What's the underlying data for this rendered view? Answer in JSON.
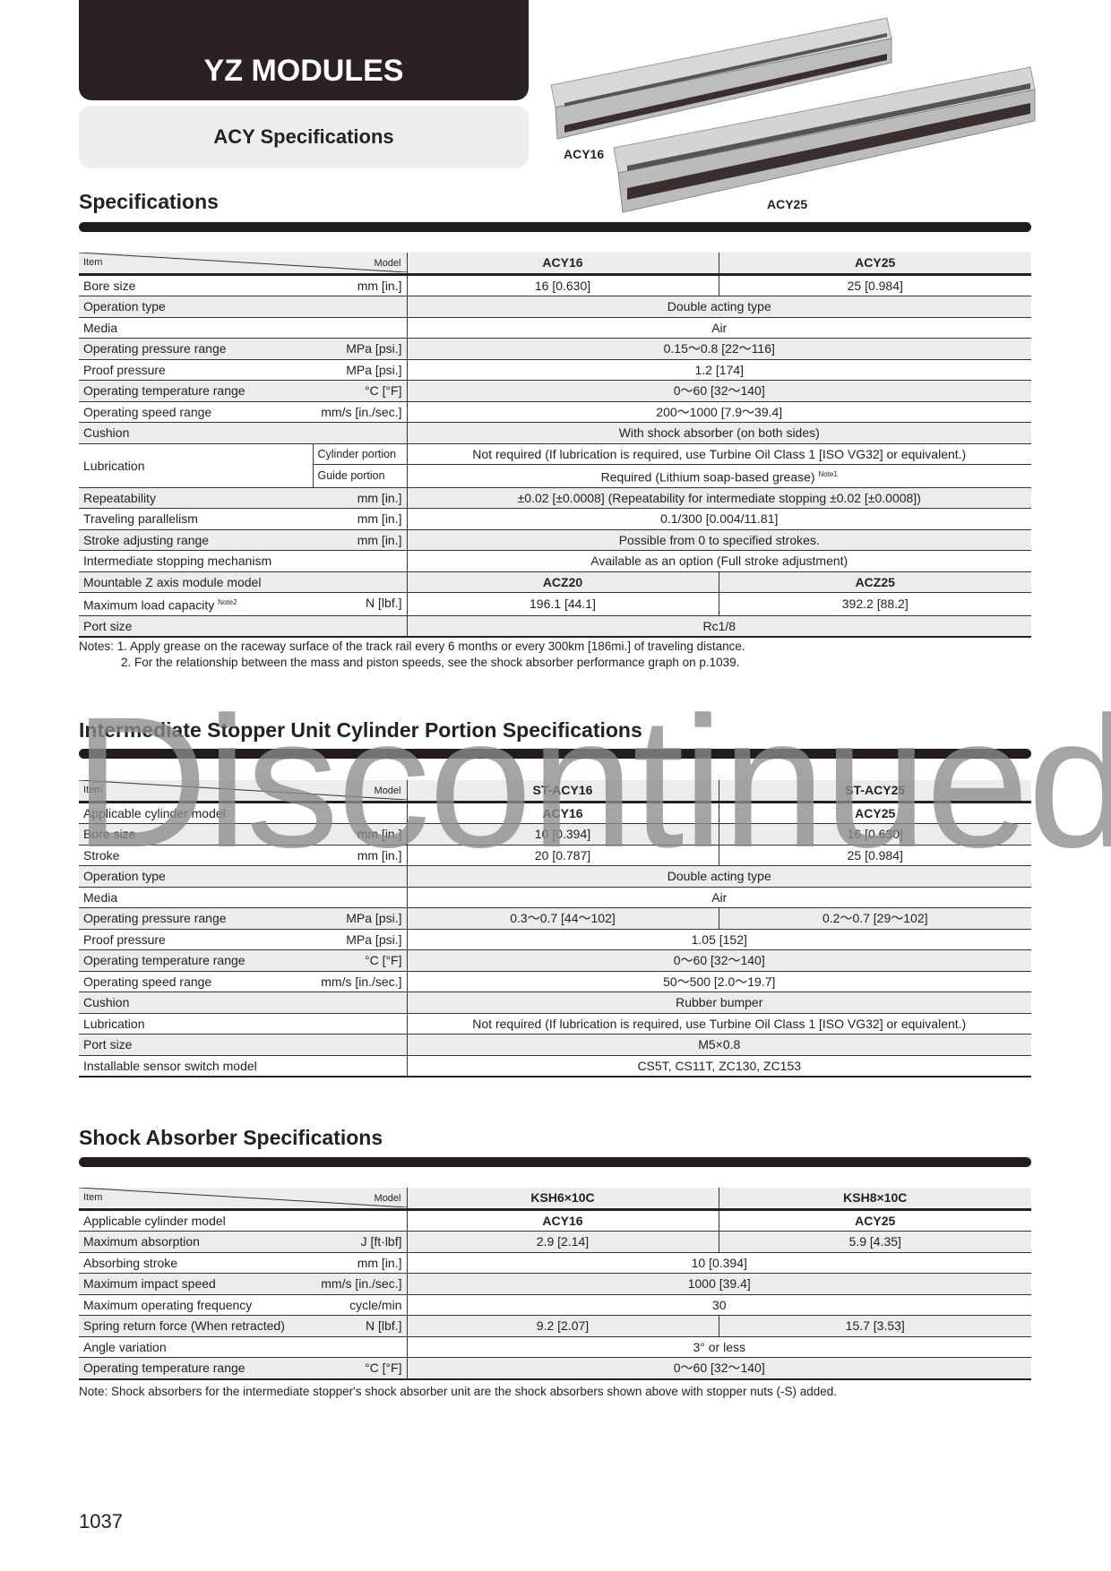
{
  "header": {
    "title": "YZ MODULES",
    "subtitle": "ACY Specifications"
  },
  "products": {
    "label_small": "ACY16",
    "label_large": "ACY25"
  },
  "watermark": "Discontinued",
  "sections": [
    {
      "title": "Specifications",
      "head": {
        "item": "Item",
        "model": "Model",
        "cols": [
          "ACY16",
          "ACY25"
        ]
      },
      "rows": [
        {
          "label": "Bore size",
          "unit": "mm [in.]",
          "cells": [
            "16 [0.630]",
            "25 [0.984]"
          ]
        },
        {
          "label": "Operation type",
          "unit": "",
          "cells": [
            "Double acting type"
          ]
        },
        {
          "label": "Media",
          "unit": "",
          "cells": [
            "Air"
          ]
        },
        {
          "label": "Operating pressure range",
          "unit": "MPa [psi.]",
          "cells": [
            "0.15～0.8 [22～116]"
          ]
        },
        {
          "label": "Proof pressure",
          "unit": "MPa [psi.]",
          "cells": [
            "1.2 [174]"
          ]
        },
        {
          "label": "Operating temperature range",
          "unit": "°C [°F]",
          "cells": [
            "0～60 [32～140]"
          ]
        },
        {
          "label": "Operating speed range",
          "unit": "mm/s [in./sec.]",
          "cells": [
            "200～1000 [7.9～39.4]"
          ]
        },
        {
          "label": "Cushion",
          "unit": "",
          "cells": [
            "With shock absorber (on both sides)"
          ]
        },
        {
          "label": "Lubrication",
          "sub": "Cylinder portion",
          "cells": [
            "Not required (If lubrication is required, use Turbine Oil Class 1 [ISO VG32] or equivalent.)"
          ]
        },
        {
          "label": "",
          "sub": "Guide portion",
          "cells": [
            "Required (Lithium soap-based grease)"
          ],
          "note": "Note1"
        },
        {
          "label": "Repeatability",
          "unit": "mm [in.]",
          "cells": [
            "±0.02 [±0.0008] (Repeatability for intermediate stopping ±0.02 [±0.0008])"
          ]
        },
        {
          "label": "Traveling parallelism",
          "unit": "mm [in.]",
          "cells": [
            "0.1/300 [0.004/11.81]"
          ]
        },
        {
          "label": "Stroke adjusting range",
          "unit": "mm [in.]",
          "cells": [
            "Possible from 0 to specified strokes."
          ]
        },
        {
          "label": "Intermediate stopping mechanism",
          "unit": "",
          "cells": [
            "Available as an option (Full stroke adjustment)"
          ]
        },
        {
          "label": "Mountable Z axis module model",
          "unit": "",
          "cells": [
            "ACZ20",
            "ACZ25"
          ],
          "bold": true
        },
        {
          "label": "Maximum load capacity",
          "label_note": "Note2",
          "unit": "N [lbf.]",
          "cells": [
            "196.1 [44.1]",
            "392.2 [88.2]"
          ]
        },
        {
          "label": "Port size",
          "unit": "",
          "cells": [
            "Rc1/8"
          ]
        }
      ],
      "notes": [
        "Notes: 1. Apply grease on the raceway surface of the track rail every 6 months or every 300km [186mi.] of traveling distance.",
        "2. For the relationship between the mass and piston speeds, see the shock absorber performance graph on p.1039."
      ]
    },
    {
      "title": "Intermediate Stopper Unit Cylinder Portion Specifications",
      "head": {
        "item": "Item",
        "model": "Model",
        "cols": [
          "ST-ACY16",
          "ST-ACY25"
        ]
      },
      "rows": [
        {
          "label": "Applicable cylinder model",
          "unit": "",
          "cells": [
            "ACY16",
            "ACY25"
          ],
          "bold": true
        },
        {
          "label": "Bore size",
          "unit": "mm [in.]",
          "cells": [
            "10 [0.394]",
            "16 [0.630]"
          ]
        },
        {
          "label": "Stroke",
          "unit": "mm [in.]",
          "cells": [
            "20 [0.787]",
            "25 [0.984]"
          ]
        },
        {
          "label": "Operation type",
          "unit": "",
          "cells": [
            "Double acting type"
          ]
        },
        {
          "label": "Media",
          "unit": "",
          "cells": [
            "Air"
          ]
        },
        {
          "label": "Operating pressure range",
          "unit": "MPa [psi.]",
          "cells": [
            "0.3～0.7 [44～102]",
            "0.2～0.7 [29～102]"
          ]
        },
        {
          "label": "Proof pressure",
          "unit": "MPa [psi.]",
          "cells": [
            "1.05 [152]"
          ]
        },
        {
          "label": "Operating temperature range",
          "unit": "°C [°F]",
          "cells": [
            "0～60 [32～140]"
          ]
        },
        {
          "label": "Operating speed range",
          "unit": "mm/s [in./sec.]",
          "cells": [
            "50～500 [2.0～19.7]"
          ]
        },
        {
          "label": "Cushion",
          "unit": "",
          "cells": [
            "Rubber bumper"
          ]
        },
        {
          "label": "Lubrication",
          "unit": "",
          "cells": [
            "Not required (If lubrication is required, use Turbine Oil Class 1 [ISO VG32] or equivalent.)"
          ]
        },
        {
          "label": "Port size",
          "unit": "",
          "cells": [
            "M5×0.8"
          ]
        },
        {
          "label": "Installable sensor switch model",
          "unit": "",
          "cells": [
            "CS5T, CS11T, ZC130, ZC153"
          ]
        }
      ],
      "notes": []
    },
    {
      "title": "Shock Absorber Specifications",
      "head": {
        "item": "Item",
        "model": "Model",
        "cols": [
          "KSH6×10C",
          "KSH8×10C"
        ]
      },
      "rows": [
        {
          "label": "Applicable cylinder model",
          "unit": "",
          "cells": [
            "ACY16",
            "ACY25"
          ],
          "bold": true
        },
        {
          "label": "Maximum absorption",
          "unit": "J [ft·lbf]",
          "cells": [
            "2.9 [2.14]",
            "5.9 [4.35]"
          ]
        },
        {
          "label": "Absorbing stroke",
          "unit": "mm [in.]",
          "cells": [
            "10 [0.394]"
          ]
        },
        {
          "label": "Maximum impact speed",
          "unit": "mm/s [in./sec.]",
          "cells": [
            "1000 [39.4]"
          ]
        },
        {
          "label": "Maximum operating frequency",
          "unit": "cycle/min",
          "cells": [
            "30"
          ]
        },
        {
          "label": "Spring return force (When retracted)",
          "unit": "N [lbf.]",
          "cells": [
            "9.2 [2.07]",
            "15.7 [3.53]"
          ]
        },
        {
          "label": "Angle variation",
          "unit": "",
          "cells": [
            "3° or less"
          ]
        },
        {
          "label": "Operating temperature range",
          "unit": "°C [°F]",
          "cells": [
            "0～60 [32～140]"
          ]
        }
      ],
      "notes": [
        "Note: Shock absorbers for the intermediate stopper's shock absorber unit are the shock absorbers shown above with stopper nuts (-S) added."
      ]
    }
  ],
  "page_number": "1037"
}
